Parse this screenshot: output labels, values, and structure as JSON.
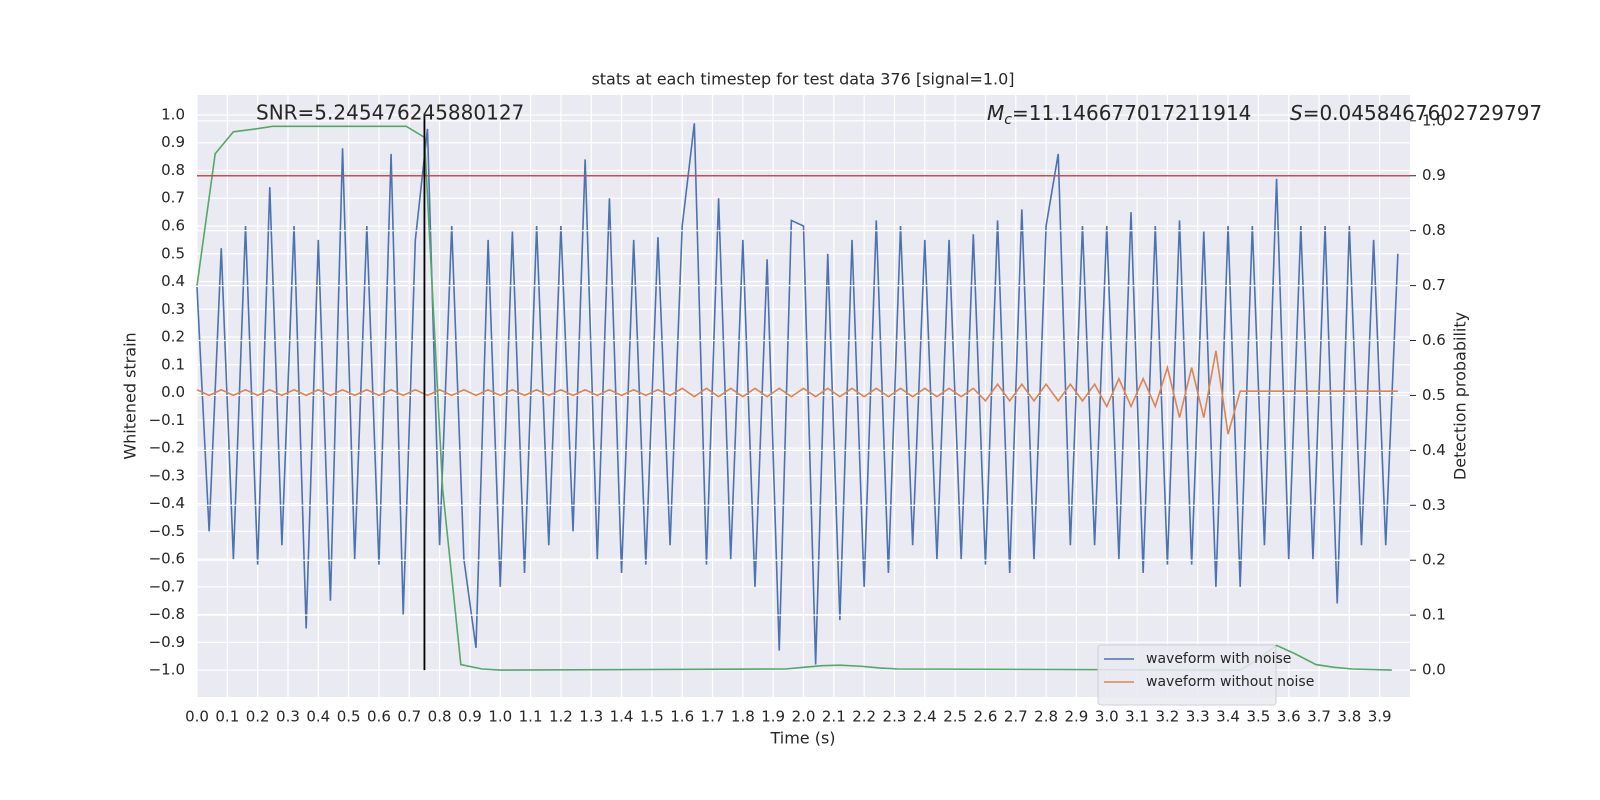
{
  "chart_data": {
    "type": "line",
    "title": "stats at each timestep for test data 376 [signal=1.0]",
    "xlabel": "Time (s)",
    "ylabel": "Whitened strain",
    "y2label": "Detection probability",
    "annotations": {
      "snr": "SNR=5.245476245880127",
      "mc_symbol": "M",
      "mc_subscript": "c",
      "mc_value": "=11.146677017211914",
      "s_symbol": "S",
      "s_value": "=0.0458467602729797"
    },
    "xlim": [
      0,
      4.0
    ],
    "ylim": [
      -1.097,
      1.072
    ],
    "y2lim": [
      -0.049,
      1.047
    ],
    "grid": true,
    "legend": "lower right",
    "xticks": [
      {
        "value": 0,
        "label": "0.0"
      },
      0.1,
      0.2,
      0.3,
      0.4,
      0.5,
      0.6,
      0.7,
      0.8,
      0.9,
      {
        "value": 1,
        "label": "1.0"
      },
      1.1,
      1.2,
      1.3,
      1.4,
      1.5,
      1.6,
      1.7,
      1.8,
      1.9,
      {
        "value": 2,
        "label": "2.0"
      },
      2.1,
      2.2,
      2.3,
      2.4,
      2.5,
      2.6,
      2.7,
      2.8,
      2.9,
      {
        "value": 3,
        "label": "3.0"
      },
      3.1,
      3.2,
      3.3,
      3.4,
      3.5,
      3.6,
      3.7,
      3.8,
      3.9
    ],
    "yticks": [
      {
        "value": -1,
        "label": "−1.0"
      },
      {
        "value": -0.9,
        "label": "−0.9"
      },
      {
        "value": -0.8,
        "label": "−0.8"
      },
      {
        "value": -0.7,
        "label": "−0.7"
      },
      {
        "value": -0.6,
        "label": "−0.6"
      },
      {
        "value": -0.5,
        "label": "−0.5"
      },
      {
        "value": -0.4,
        "label": "−0.4"
      },
      {
        "value": -0.3,
        "label": "−0.3"
      },
      {
        "value": -0.2,
        "label": "−0.2"
      },
      {
        "value": -0.1,
        "label": "−0.1"
      },
      {
        "value": 0,
        "label": "0.0"
      },
      0.1,
      0.2,
      0.3,
      0.4,
      0.5,
      0.6,
      0.7,
      0.8,
      0.9,
      {
        "value": 1,
        "label": "1.0"
      }
    ],
    "y2ticks": [
      {
        "value": 0,
        "label": "0.0"
      },
      0.1,
      0.2,
      0.3,
      0.4,
      0.5,
      0.6,
      0.7,
      0.8,
      0.9,
      {
        "value": 1,
        "label": "1.0"
      }
    ],
    "x": [
      0,
      0.04,
      0.08,
      0.12,
      0.16,
      0.2,
      0.24,
      0.28,
      0.32,
      0.36,
      0.4,
      0.44,
      0.48,
      0.52,
      0.56,
      0.6,
      0.64,
      0.68,
      0.72,
      0.76,
      0.8,
      0.84,
      0.88,
      0.92,
      0.96,
      1.0,
      1.04,
      1.08,
      1.12,
      1.16,
      1.2,
      1.24,
      1.28,
      1.32,
      1.36,
      1.4,
      1.44,
      1.48,
      1.52,
      1.56,
      1.6,
      1.64,
      1.68,
      1.72,
      1.76,
      1.8,
      1.84,
      1.88,
      1.92,
      1.96,
      2.0,
      2.04,
      2.08,
      2.12,
      2.16,
      2.2,
      2.24,
      2.28,
      2.32,
      2.36,
      2.4,
      2.44,
      2.48,
      2.52,
      2.56,
      2.6,
      2.64,
      2.68,
      2.72,
      2.76,
      2.8,
      2.84,
      2.88,
      2.92,
      2.96,
      3.0,
      3.04,
      3.08,
      3.12,
      3.16,
      3.2,
      3.24,
      3.28,
      3.32,
      3.36,
      3.4,
      3.44,
      3.48,
      3.52,
      3.56,
      3.6,
      3.64,
      3.68,
      3.72,
      3.76,
      3.8,
      3.84,
      3.88,
      3.92,
      3.96
    ],
    "series": [
      {
        "name": "waveform with noise",
        "color": "#4c72b0",
        "values": [
          0.38,
          -0.5,
          0.52,
          -0.6,
          0.6,
          -0.62,
          0.74,
          -0.55,
          0.6,
          -0.85,
          0.55,
          -0.75,
          0.88,
          -0.6,
          0.6,
          -0.62,
          0.86,
          -0.8,
          0.55,
          0.95,
          -0.55,
          0.6,
          -0.6,
          -0.92,
          0.55,
          -0.7,
          0.58,
          -0.65,
          0.6,
          -0.55,
          0.6,
          -0.5,
          0.84,
          -0.6,
          0.7,
          -0.65,
          0.55,
          -0.62,
          0.56,
          -0.55,
          0.6,
          0.97,
          -0.62,
          0.7,
          -0.6,
          0.55,
          -0.7,
          0.48,
          -0.93,
          0.62,
          0.6,
          -0.98,
          0.5,
          -0.82,
          0.55,
          -0.7,
          0.62,
          -0.65,
          0.6,
          -0.55,
          0.55,
          -0.6,
          0.55,
          -0.6,
          0.57,
          -0.62,
          0.62,
          -0.65,
          0.66,
          -0.6,
          0.6,
          0.86,
          -0.55,
          0.6,
          -0.55,
          0.6,
          -0.6,
          0.65,
          -0.65,
          0.6,
          -0.62,
          0.62,
          -0.62,
          0.58,
          -0.7,
          0.6,
          -0.7,
          0.6,
          -0.55,
          0.77,
          -0.6,
          0.6,
          -0.6,
          0.6,
          -0.76,
          0.6,
          -0.55,
          0.55,
          -0.55,
          0.5
        ]
      },
      {
        "name": "waveform without noise",
        "color": "#dd8452",
        "values": [
          0.01,
          -0.01,
          0.01,
          -0.01,
          0.01,
          -0.01,
          0.01,
          -0.01,
          0.01,
          -0.01,
          0.01,
          -0.01,
          0.01,
          -0.01,
          0.01,
          -0.01,
          0.01,
          -0.01,
          0.01,
          -0.01,
          0.01,
          -0.01,
          0.01,
          -0.01,
          0.01,
          -0.01,
          0.01,
          -0.01,
          0.01,
          -0.01,
          0.01,
          -0.01,
          0.01,
          -0.01,
          0.01,
          -0.01,
          0.01,
          -0.01,
          0.01,
          -0.01,
          0.015,
          -0.015,
          0.015,
          -0.015,
          0.015,
          -0.015,
          0.015,
          -0.015,
          0.015,
          -0.015,
          0.015,
          -0.015,
          0.015,
          -0.015,
          0.015,
          -0.015,
          0.015,
          -0.015,
          0.015,
          -0.015,
          0.015,
          -0.015,
          0.015,
          -0.015,
          0.015,
          -0.03,
          0.03,
          -0.03,
          0.03,
          -0.03,
          0.03,
          -0.03,
          0.03,
          -0.03,
          0.03,
          -0.05,
          0.05,
          -0.05,
          0.05,
          -0.05,
          0.09,
          -0.09,
          0.09,
          -0.09,
          0.15,
          -0.15,
          0.005,
          0.005,
          0.005,
          0.005,
          0.005,
          0.005,
          0.005,
          0.005,
          0.005,
          0.005,
          0.005,
          0.005,
          0.005,
          0.005
        ]
      },
      {
        "color": "#55a868",
        "axis": "y2",
        "x": [
          0,
          0.06,
          0.12,
          0.19,
          0.25,
          0.69,
          0.75,
          0.81,
          0.87,
          0.94,
          1.0,
          1.94,
          2.0,
          2.06,
          2.12,
          2.19,
          2.25,
          2.31,
          3.44,
          3.5,
          3.56,
          3.62,
          3.69,
          3.75,
          3.81,
          3.94
        ],
        "values": [
          0.7,
          0.94,
          0.98,
          0.985,
          0.99,
          0.99,
          0.97,
          0.33,
          0.01,
          0.002,
          0.0,
          0.002,
          0.005,
          0.008,
          0.009,
          0.007,
          0.004,
          0.002,
          0.0,
          0.02,
          0.045,
          0.03,
          0.01,
          0.005,
          0.002,
          0.0
        ]
      }
    ],
    "threshold": {
      "value": 0.9,
      "axis": "y2",
      "color": "#c44e52"
    },
    "vline": {
      "x": 0.75,
      "ymin": -1,
      "ymax": 1,
      "color": "#000000"
    }
  }
}
